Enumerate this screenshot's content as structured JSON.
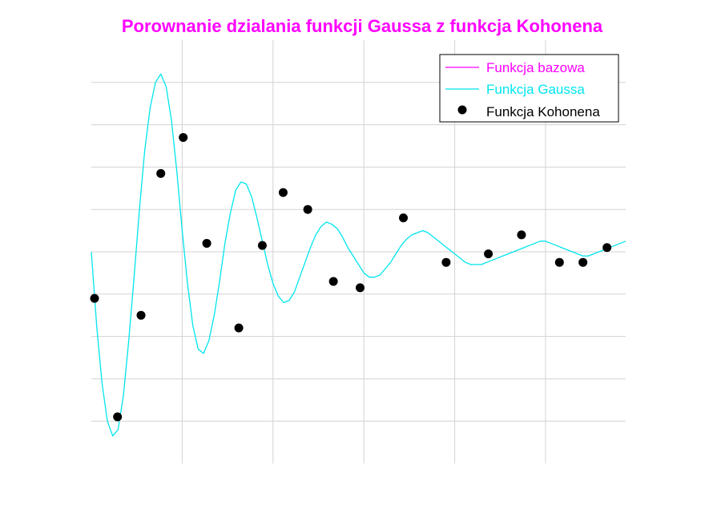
{
  "chart_data": {
    "type": "line",
    "title": "Porownanie dzialania funkcji Gaussa z funkcja Kohonena",
    "xlabel": "",
    "ylabel": "",
    "xlim": [
      0,
      1
    ],
    "ylim": [
      -1,
      1
    ],
    "grid": true,
    "legend_position": "top-right",
    "series": [
      {
        "name": "Funkcja bazowa",
        "style": "line",
        "color": "#ff00ff",
        "x": [],
        "y": []
      },
      {
        "name": "Funkcja Gaussa",
        "style": "line",
        "color": "#00e5ee",
        "x": [
          0.0,
          0.01,
          0.02,
          0.03,
          0.04,
          0.05,
          0.06,
          0.07,
          0.08,
          0.09,
          0.1,
          0.11,
          0.12,
          0.13,
          0.14,
          0.15,
          0.16,
          0.17,
          0.18,
          0.19,
          0.2,
          0.21,
          0.22,
          0.23,
          0.24,
          0.25,
          0.26,
          0.27,
          0.28,
          0.29,
          0.3,
          0.31,
          0.32,
          0.33,
          0.34,
          0.35,
          0.36,
          0.37,
          0.38,
          0.39,
          0.4,
          0.41,
          0.42,
          0.43,
          0.44,
          0.45,
          0.46,
          0.47,
          0.48,
          0.49,
          0.5,
          0.51,
          0.52,
          0.53,
          0.54,
          0.55,
          0.56,
          0.57,
          0.58,
          0.59,
          0.6,
          0.61,
          0.62,
          0.63,
          0.64,
          0.65,
          0.66,
          0.67,
          0.68,
          0.69,
          0.7,
          0.71,
          0.72,
          0.73,
          0.74,
          0.75,
          0.76,
          0.77,
          0.78,
          0.79,
          0.8,
          0.81,
          0.82,
          0.83,
          0.84,
          0.85,
          0.86,
          0.87,
          0.88,
          0.89,
          0.9,
          0.91,
          0.92,
          0.93,
          0.94,
          0.95,
          0.96,
          0.97,
          0.98,
          0.99,
          1.0
        ],
        "y": [
          0.0,
          -0.35,
          -0.62,
          -0.8,
          -0.87,
          -0.84,
          -0.68,
          -0.42,
          -0.12,
          0.2,
          0.48,
          0.68,
          0.8,
          0.84,
          0.78,
          0.62,
          0.38,
          0.1,
          -0.15,
          -0.35,
          -0.46,
          -0.48,
          -0.42,
          -0.3,
          -0.14,
          0.04,
          0.18,
          0.29,
          0.33,
          0.32,
          0.26,
          0.16,
          0.05,
          -0.06,
          -0.15,
          -0.21,
          -0.24,
          -0.23,
          -0.19,
          -0.12,
          -0.05,
          0.02,
          0.08,
          0.12,
          0.14,
          0.13,
          0.11,
          0.07,
          0.02,
          -0.02,
          -0.06,
          -0.1,
          -0.12,
          -0.12,
          -0.11,
          -0.08,
          -0.05,
          -0.01,
          0.03,
          0.06,
          0.08,
          0.09,
          0.1,
          0.09,
          0.07,
          0.05,
          0.03,
          0.01,
          -0.01,
          -0.03,
          -0.05,
          -0.06,
          -0.06,
          -0.06,
          -0.05,
          -0.04,
          -0.03,
          -0.02,
          -0.01,
          0.0,
          0.01,
          0.02,
          0.03,
          0.04,
          0.05,
          0.05,
          0.04,
          0.03,
          0.02,
          0.01,
          0.0,
          -0.01,
          -0.02,
          -0.02,
          -0.01,
          0.0,
          0.01,
          0.02,
          0.03,
          0.04,
          0.05
        ]
      },
      {
        "name": "Funkcja Kohonena",
        "style": "markers",
        "color": "#000000",
        "x": [
          0.006,
          0.049,
          0.093,
          0.13,
          0.172,
          0.216,
          0.276,
          0.32,
          0.359,
          0.405,
          0.453,
          0.503,
          0.584,
          0.664,
          0.743,
          0.805,
          0.876,
          0.92,
          0.965
        ],
        "y": [
          -0.22,
          -0.78,
          -0.3,
          0.37,
          0.54,
          0.04,
          -0.36,
          0.03,
          0.28,
          0.2,
          -0.14,
          -0.17,
          0.16,
          -0.05,
          -0.01,
          0.08,
          -0.05,
          -0.05,
          0.02
        ]
      }
    ]
  }
}
